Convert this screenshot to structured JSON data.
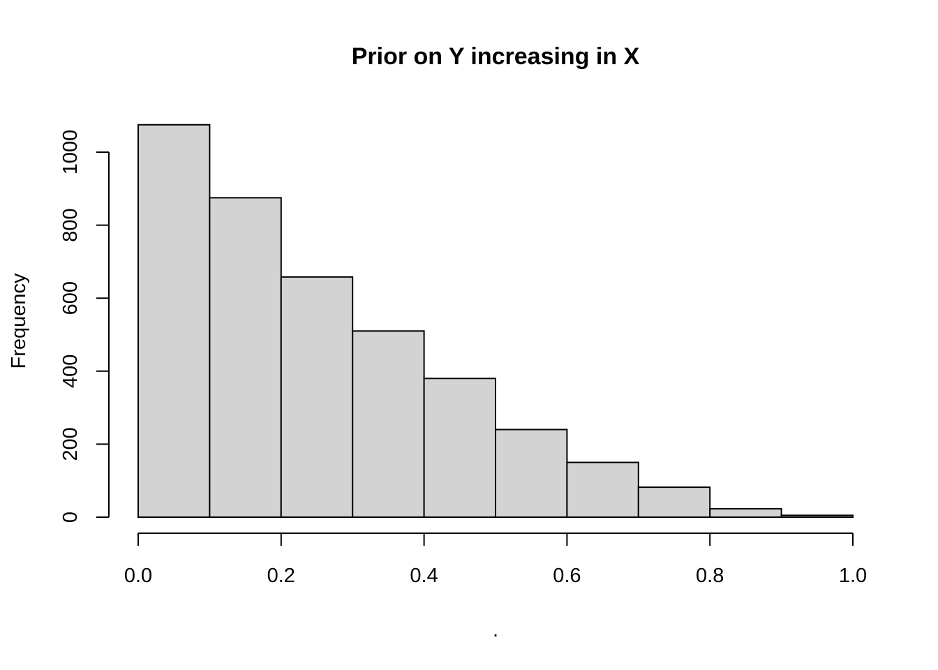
{
  "chart_data": {
    "type": "bar",
    "title": "Prior on Y increasing in X",
    "xlabel": ".",
    "ylabel": "Frequency",
    "bins": [
      {
        "from": 0.0,
        "to": 0.1,
        "count": 1075
      },
      {
        "from": 0.1,
        "to": 0.2,
        "count": 875
      },
      {
        "from": 0.2,
        "to": 0.3,
        "count": 658
      },
      {
        "from": 0.3,
        "to": 0.4,
        "count": 510
      },
      {
        "from": 0.4,
        "to": 0.5,
        "count": 380
      },
      {
        "from": 0.5,
        "to": 0.6,
        "count": 240
      },
      {
        "from": 0.6,
        "to": 0.7,
        "count": 150
      },
      {
        "from": 0.7,
        "to": 0.8,
        "count": 82
      },
      {
        "from": 0.8,
        "to": 0.9,
        "count": 23
      },
      {
        "from": 0.9,
        "to": 1.0,
        "count": 5
      }
    ],
    "xlim": [
      0.0,
      1.0
    ],
    "ylim": [
      0,
      1000
    ],
    "x_ticks": [
      "0.0",
      "0.2",
      "0.4",
      "0.6",
      "0.8",
      "1.0"
    ],
    "y_ticks": [
      "0",
      "200",
      "400",
      "600",
      "800",
      "1000"
    ],
    "grid": false,
    "bar_fill": "#d3d3d3",
    "bar_stroke": "#000000"
  }
}
